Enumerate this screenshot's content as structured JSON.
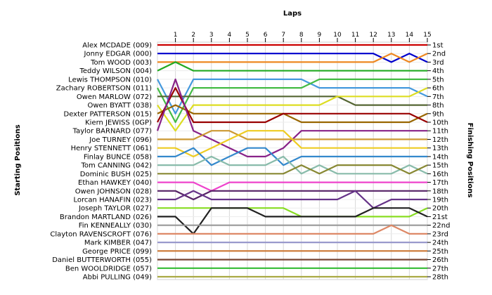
{
  "chart_data": {
    "type": "line",
    "title": "",
    "xlabel": "Laps",
    "ylabel_left": "Starting Positions",
    "ylabel_right": "Finishing Positions",
    "x": [
      0,
      1,
      2,
      3,
      4,
      5,
      6,
      7,
      8,
      9,
      10,
      11,
      12,
      13,
      14,
      15
    ],
    "x_tick_labels": [
      "1",
      "2",
      "3",
      "4",
      "5",
      "6",
      "7",
      "8",
      "9",
      "10",
      "11",
      "12",
      "13",
      "14",
      "15"
    ],
    "y_reversed": true,
    "grid": true,
    "drivers": [
      "Alex MCDADE (009)",
      "Jonny EDGAR (000)",
      "Tom WOOD (003)",
      "Teddy WILSON (004)",
      "Lewis THOMPSON (010)",
      "Zachary ROBERTSON (011)",
      "Owen MARLOW (072)",
      "Owen BYATT (038)",
      "Dexter PATTERSON (015)",
      "Kiern JEWISS (0GP)",
      "Taylor BARNARD (077)",
      "Joe TURNEY (096)",
      "Henry STENNETT (061)",
      "Finlay BUNCE (058)",
      "Tom CANNING (042)",
      "Dominic BUSH (025)",
      "Ethan HAWKEY (040)",
      "Owen JOHNSON (028)",
      "Lorcan HANAFIN (023)",
      "Joseph TAYLOR (027)",
      "Brandon MARTLAND (026)",
      "Fin KENNEALLY (030)",
      "Clayton RAVENSCROFT (076)",
      "Mark KIMBER (047)",
      "George PRICE (099)",
      "Daniel BUTTERWORTH (055)",
      "Ben WOOLDRIDGE (057)",
      "Abbi PULLING (049)"
    ],
    "finishing_labels": [
      "1st",
      "2nd",
      "3rd",
      "4th",
      "5th",
      "6th",
      "7th",
      "8th",
      "9th",
      "10th",
      "11th",
      "12th",
      "13th",
      "14th",
      "15th",
      "16th",
      "17th",
      "18th",
      "19th",
      "20th",
      "21st",
      "22nd",
      "23rd",
      "24th",
      "25th",
      "26th",
      "27th",
      "28th"
    ],
    "series": [
      {
        "color": "#cc0000",
        "values": [
          1,
          1,
          1,
          1,
          1,
          1,
          1,
          1,
          1,
          1,
          1,
          1,
          1,
          1,
          1,
          1
        ]
      },
      {
        "color": "#0000cc",
        "values": [
          2,
          2,
          2,
          2,
          2,
          2,
          2,
          2,
          2,
          2,
          2,
          2,
          2,
          3,
          2,
          3
        ]
      },
      {
        "color": "#ee8822",
        "values": [
          3,
          3,
          3,
          3,
          3,
          3,
          3,
          3,
          3,
          3,
          3,
          3,
          3,
          2,
          3,
          2
        ]
      },
      {
        "color": "#22aa22",
        "values": [
          4,
          3,
          4,
          4,
          4,
          4,
          4,
          4,
          4,
          4,
          4,
          4,
          4,
          4,
          4,
          4
        ]
      },
      {
        "color": "#4499dd",
        "values": [
          5,
          9,
          5,
          5,
          5,
          5,
          5,
          5,
          5,
          6,
          6,
          6,
          6,
          6,
          6,
          7
        ]
      },
      {
        "color": "#44bb44",
        "values": [
          6,
          10,
          6,
          6,
          6,
          6,
          6,
          6,
          6,
          5,
          5,
          5,
          5,
          5,
          5,
          5
        ]
      },
      {
        "color": "#556633",
        "values": [
          7,
          7,
          7,
          7,
          7,
          7,
          7,
          7,
          7,
          7,
          7,
          8,
          8,
          8,
          8,
          8
        ]
      },
      {
        "color": "#dddd22",
        "values": [
          8,
          11,
          8,
          8,
          8,
          8,
          8,
          8,
          8,
          8,
          7,
          7,
          7,
          7,
          7,
          6
        ]
      },
      {
        "color": "#996600",
        "values": [
          9,
          8,
          9,
          9,
          9,
          9,
          9,
          9,
          10,
          10,
          10,
          10,
          10,
          10,
          10,
          9
        ]
      },
      {
        "color": "#990000",
        "values": [
          10,
          6,
          10,
          10,
          10,
          10,
          10,
          9,
          9,
          9,
          9,
          9,
          9,
          9,
          9,
          10
        ]
      },
      {
        "color": "#882288",
        "values": [
          11,
          5,
          11,
          12,
          13,
          14,
          14,
          13,
          11,
          11,
          11,
          11,
          11,
          11,
          11,
          11
        ]
      },
      {
        "color": "#cc9933",
        "values": [
          12,
          12,
          12,
          11,
          11,
          12,
          12,
          12,
          12,
          12,
          12,
          12,
          12,
          12,
          12,
          12
        ]
      },
      {
        "color": "#eecc22",
        "values": [
          13,
          13,
          14,
          13,
          12,
          11,
          11,
          11,
          13,
          13,
          13,
          13,
          13,
          13,
          13,
          13
        ]
      },
      {
        "color": "#3388cc",
        "values": [
          14,
          14,
          13,
          15,
          14,
          13,
          13,
          15,
          14,
          14,
          14,
          14,
          14,
          14,
          14,
          14
        ]
      },
      {
        "color": "#88bbaa",
        "values": [
          15,
          15,
          15,
          14,
          15,
          15,
          15,
          14,
          16,
          15,
          16,
          16,
          16,
          16,
          15,
          16
        ]
      },
      {
        "color": "#888833",
        "values": [
          16,
          16,
          16,
          16,
          16,
          16,
          16,
          16,
          15,
          16,
          15,
          15,
          15,
          15,
          16,
          15
        ]
      },
      {
        "color": "#ee44cc",
        "values": [
          17,
          17,
          17,
          18,
          17,
          17,
          17,
          17,
          17,
          17,
          17,
          17,
          17,
          17,
          17,
          17
        ]
      },
      {
        "color": "#552266",
        "values": [
          18,
          18,
          19,
          18,
          18,
          18,
          18,
          18,
          18,
          18,
          18,
          18,
          18,
          18,
          18,
          18
        ]
      },
      {
        "color": "#663388",
        "values": [
          19,
          19,
          18,
          19,
          19,
          19,
          19,
          19,
          19,
          19,
          19,
          18,
          20,
          19,
          19,
          19
        ]
      },
      {
        "color": "#88dd22",
        "values": [
          20,
          20,
          20,
          20,
          20,
          20,
          20,
          20,
          21,
          21,
          21,
          21,
          21,
          21,
          21,
          20
        ]
      },
      {
        "color": "#222222",
        "values": [
          21,
          21,
          23,
          20,
          20,
          20,
          21,
          21,
          21,
          21,
          21,
          21,
          20,
          20,
          20,
          21
        ]
      },
      {
        "color": "#999999",
        "values": [
          22,
          22,
          22,
          22,
          22,
          22,
          22,
          22,
          22,
          22,
          22,
          22,
          22,
          22,
          22,
          22
        ]
      },
      {
        "color": "#dd8866",
        "values": [
          23,
          23,
          23,
          23,
          23,
          23,
          23,
          23,
          23,
          23,
          23,
          23,
          23,
          22,
          23,
          23
        ]
      },
      {
        "color": "#9999cc",
        "values": [
          24,
          24,
          24,
          24,
          24,
          24,
          24,
          24,
          24,
          24,
          24,
          24,
          24,
          24,
          24,
          24
        ]
      },
      {
        "color": "#cc7733",
        "values": [
          25,
          25,
          25,
          25,
          25,
          25,
          25,
          25,
          25,
          25,
          25,
          25,
          25,
          25,
          25,
          25
        ]
      },
      {
        "color": "#774433",
        "values": [
          26,
          26,
          26,
          26,
          26,
          26,
          26,
          26,
          26,
          26,
          26,
          26,
          26,
          26,
          26,
          26
        ]
      },
      {
        "color": "#33bb33",
        "values": [
          27,
          27,
          27,
          27,
          27,
          27,
          27,
          27,
          27,
          27,
          27,
          27,
          27,
          27,
          27,
          27
        ]
      },
      {
        "color": "#aaaa44",
        "values": [
          28,
          28,
          28,
          28,
          28,
          28,
          28,
          28,
          28,
          28,
          28,
          28,
          28,
          28,
          28,
          28
        ]
      }
    ]
  }
}
